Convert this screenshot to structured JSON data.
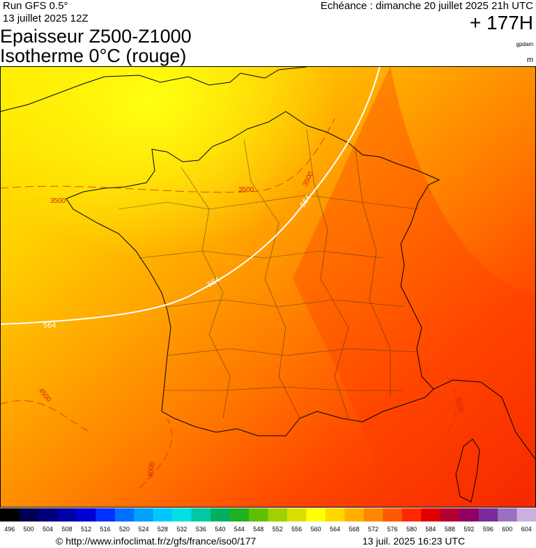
{
  "header": {
    "run": "Run GFS 0.5°",
    "run_date": "13 juillet 2025 12Z",
    "valid": "Echéance : dimanche 20 juillet 2025 21h UTC",
    "lead": "+ 177H",
    "title_line1": "Epaisseur Z500-Z1000",
    "title_line2": "Isotherme 0°C (rouge)",
    "unit_thickness": "gpdam",
    "unit_iso": "m"
  },
  "contour_labels": {
    "thickness": [
      "564",
      "564",
      "564"
    ],
    "isotherm": [
      "3500",
      "3500",
      "3500",
      "4500",
      "4000",
      "4500"
    ]
  },
  "legend": {
    "labels": [
      496,
      500,
      504,
      508,
      512,
      516,
      520,
      524,
      528,
      532,
      536,
      540,
      544,
      548,
      552,
      556,
      560,
      564,
      568,
      572,
      576,
      580,
      584,
      588,
      592,
      596,
      600,
      604
    ],
    "colors": [
      "#000000",
      "#000050",
      "#00007a",
      "#0000a8",
      "#0000d4",
      "#0030ff",
      "#0070ff",
      "#00a0ff",
      "#00c8ff",
      "#00e0e0",
      "#00c8a0",
      "#00b060",
      "#20b020",
      "#60c000",
      "#a0d000",
      "#d8e000",
      "#ffff00",
      "#ffd800",
      "#ffb000",
      "#ff8800",
      "#ff5a00",
      "#ff2800",
      "#e00000",
      "#b00030",
      "#900060",
      "#7a2a9a",
      "#9a70c0",
      "#c8b0e0"
    ]
  },
  "footer": {
    "source": "© http://www.infoclimat.fr/z/gfs/france/iso0/177",
    "generated": "13 juil. 2025 16:23 UTC"
  }
}
